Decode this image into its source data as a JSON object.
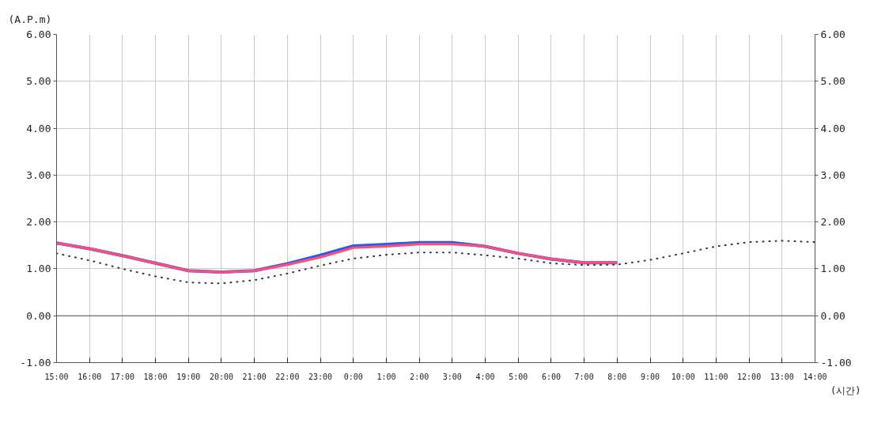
{
  "chart_data": {
    "type": "line",
    "ylabel": "(A.P.m)",
    "xlabel": "(시간)",
    "categories": [
      "15:00",
      "16:00",
      "17:00",
      "18:00",
      "19:00",
      "20:00",
      "21:00",
      "22:00",
      "23:00",
      "0:00",
      "1:00",
      "2:00",
      "3:00",
      "4:00",
      "5:00",
      "6:00",
      "7:00",
      "8:00",
      "9:00",
      "10:00",
      "11:00",
      "12:00",
      "13:00",
      "14:00"
    ],
    "series": [
      {
        "color": "#2060f0",
        "values": [
          1.55,
          1.43,
          1.28,
          1.12,
          0.96,
          0.93,
          0.96,
          1.11,
          1.29,
          1.49,
          1.52,
          1.56,
          1.56,
          1.48,
          1.33,
          1.21,
          1.13,
          1.13,
          null,
          null,
          null,
          null,
          null,
          null
        ]
      },
      {
        "color": "#ff4d79",
        "values": [
          1.55,
          1.43,
          1.28,
          1.12,
          0.96,
          0.93,
          0.96,
          1.09,
          1.25,
          1.45,
          1.48,
          1.53,
          1.53,
          1.48,
          1.33,
          1.21,
          1.13,
          1.13,
          null,
          null,
          null,
          null,
          null,
          null
        ]
      },
      {
        "color": "#333333",
        "line_style": "dotted",
        "values": [
          1.33,
          1.18,
          1.0,
          0.84,
          0.71,
          0.69,
          0.76,
          0.9,
          1.07,
          1.22,
          1.3,
          1.35,
          1.35,
          1.29,
          1.22,
          1.12,
          1.08,
          1.09,
          1.19,
          1.33,
          1.48,
          1.57,
          1.6,
          1.57
        ]
      }
    ],
    "line_style": "solid",
    "ylim": [
      -1,
      6
    ],
    "yticks": [
      {
        "value": -1,
        "label": "-1.00"
      },
      {
        "value": 0,
        "label": "0.00"
      },
      {
        "value": 1,
        "label": "1.00"
      },
      {
        "value": 2,
        "label": "2.00"
      },
      {
        "value": 3,
        "label": "3.00"
      },
      {
        "value": 4,
        "label": "4.00"
      },
      {
        "value": 5,
        "label": "5.00"
      },
      {
        "value": 6,
        "label": "6.00"
      }
    ],
    "y2lim": [
      -1,
      6
    ],
    "y2ticks": [
      {
        "value": -1,
        "label": "-1.00"
      },
      {
        "value": 0,
        "label": "0.00"
      },
      {
        "value": 1,
        "label": "1.00"
      },
      {
        "value": 2,
        "label": "2.00"
      },
      {
        "value": 3,
        "label": "3.00"
      },
      {
        "value": 4,
        "label": "4.00"
      },
      {
        "value": 5,
        "label": "5.00"
      },
      {
        "value": 6,
        "label": "6.00"
      }
    ],
    "ref_lines": [
      {
        "axis": "y",
        "value": 0,
        "color": "#555555"
      }
    ],
    "grid": true
  }
}
